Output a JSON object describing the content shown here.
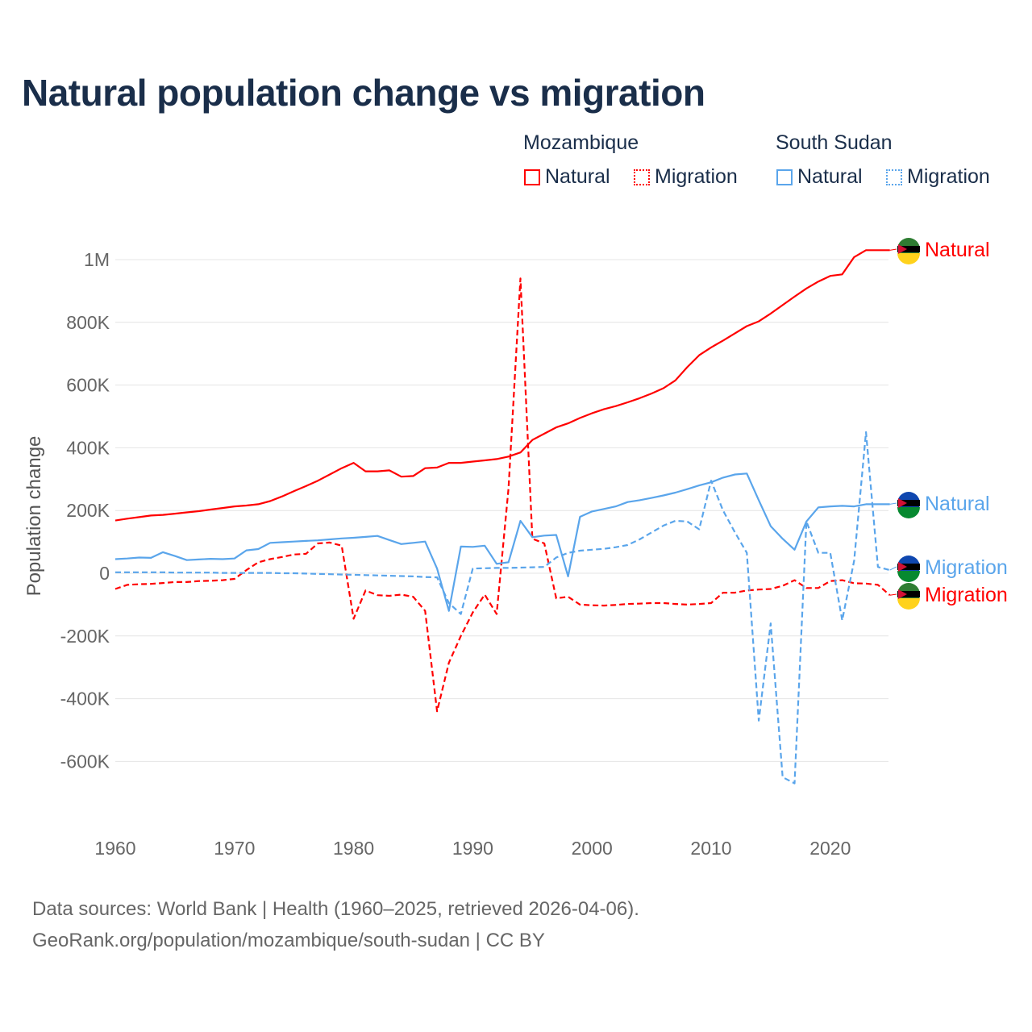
{
  "title": "Natural population change vs migration",
  "legend": {
    "groups": [
      {
        "name": "Mozambique",
        "items": [
          {
            "label": "Natural",
            "style": "solid",
            "color": "#ff0000"
          },
          {
            "label": "Migration",
            "style": "dotted",
            "color": "#ff0000"
          }
        ]
      },
      {
        "name": "South Sudan",
        "items": [
          {
            "label": "Natural",
            "style": "solid",
            "color": "#5aa5eb"
          },
          {
            "label": "Migration",
            "style": "dotted",
            "color": "#5aa5eb"
          }
        ]
      }
    ]
  },
  "source": {
    "line1": "Data sources: World Bank | Health (1960–2025, retrieved 2026-04-06).",
    "line2": "GeoRank.org/population/mozambique/south-sudan | CC BY"
  },
  "chart_data": {
    "type": "line",
    "title": "Natural population change vs migration",
    "xlabel": "",
    "ylabel": "Population change",
    "xlim": [
      1960,
      2025
    ],
    "ylim": [
      -700000,
      1100000
    ],
    "xticks": [
      1960,
      1970,
      1980,
      1990,
      2000,
      2010,
      2020
    ],
    "yticks": [
      {
        "v": -600000,
        "label": "-600K"
      },
      {
        "v": -400000,
        "label": "-400K"
      },
      {
        "v": -200000,
        "label": "-200K"
      },
      {
        "v": 0,
        "label": "0"
      },
      {
        "v": 200000,
        "label": "200K"
      },
      {
        "v": 400000,
        "label": "400K"
      },
      {
        "v": 600000,
        "label": "600K"
      },
      {
        "v": 800000,
        "label": "800K"
      },
      {
        "v": 1000000,
        "label": "1M"
      }
    ],
    "grid": true,
    "x_start": 1960,
    "units": "thousands",
    "series": [
      {
        "name": "Mozambique Natural",
        "end_label": "Natural",
        "color": "#ff0000",
        "dash": false,
        "values": [
          168,
          174,
          179,
          184,
          186,
          190,
          194,
          198,
          203,
          208,
          213,
          216,
          220,
          230,
          245,
          262,
          278,
          295,
          315,
          335,
          352,
          325,
          325,
          328,
          308,
          310,
          335,
          337,
          352,
          352,
          356,
          360,
          364,
          372,
          385,
          425,
          445,
          465,
          478,
          495,
          510,
          523,
          533,
          545,
          558,
          573,
          590,
          615,
          657,
          695,
          720,
          742,
          765,
          788,
          803,
          828,
          855,
          882,
          908,
          930,
          948,
          953,
          1008,
          1030,
          1030,
          1030
        ]
      },
      {
        "name": "Mozambique Migration",
        "end_label": "Migration",
        "color": "#ff0000",
        "dash": true,
        "values": [
          -50,
          -37,
          -35,
          -34,
          -31,
          -28,
          -28,
          -25,
          -24,
          -22,
          -18,
          10,
          35,
          45,
          52,
          60,
          62,
          95,
          98,
          88,
          -145,
          -55,
          -70,
          -72,
          -68,
          -75,
          -120,
          -440,
          -285,
          -200,
          -125,
          -68,
          -130,
          270,
          940,
          110,
          95,
          -80,
          -75,
          -100,
          -102,
          -103,
          -101,
          -98,
          -97,
          -95,
          -95,
          -98,
          -100,
          -98,
          -95,
          -62,
          -62,
          -55,
          -52,
          -50,
          -40,
          -22,
          -47,
          -47,
          -25,
          -22,
          -32,
          -33,
          -37,
          -70
        ]
      },
      {
        "name": "South Sudan Natural",
        "end_label": "Natural",
        "color": "#5aa5eb",
        "dash": false,
        "values": [
          45,
          47,
          50,
          49,
          67,
          55,
          42,
          44,
          46,
          45,
          47,
          73,
          77,
          97,
          99,
          101,
          103,
          105,
          108,
          111,
          113,
          116,
          119,
          106,
          93,
          97,
          101,
          15,
          -120,
          85,
          84,
          88,
          30,
          35,
          167,
          115,
          120,
          122,
          -10,
          180,
          197,
          205,
          213,
          227,
          233,
          240,
          248,
          257,
          268,
          280,
          290,
          305,
          315,
          318,
          233,
          150,
          110,
          75,
          165,
          210,
          213,
          215,
          213,
          220,
          220,
          220
        ]
      },
      {
        "name": "South Sudan Migration",
        "end_label": "Migration",
        "color": "#5aa5eb",
        "dash": true,
        "values": [
          3,
          3,
          3,
          3,
          3,
          2,
          2,
          2,
          2,
          1,
          1,
          1,
          1,
          1,
          0,
          0,
          -1,
          -2,
          -3,
          -4,
          -5,
          -6,
          -7,
          -8,
          -9,
          -10,
          -12,
          -13,
          -95,
          -130,
          15,
          16,
          17,
          17,
          18,
          19,
          20,
          50,
          65,
          72,
          75,
          78,
          83,
          90,
          108,
          130,
          152,
          167,
          165,
          140,
          295,
          200,
          130,
          65,
          -470,
          -160,
          -650,
          -670,
          165,
          65,
          65,
          -150,
          40,
          450,
          20,
          10
        ]
      }
    ]
  }
}
